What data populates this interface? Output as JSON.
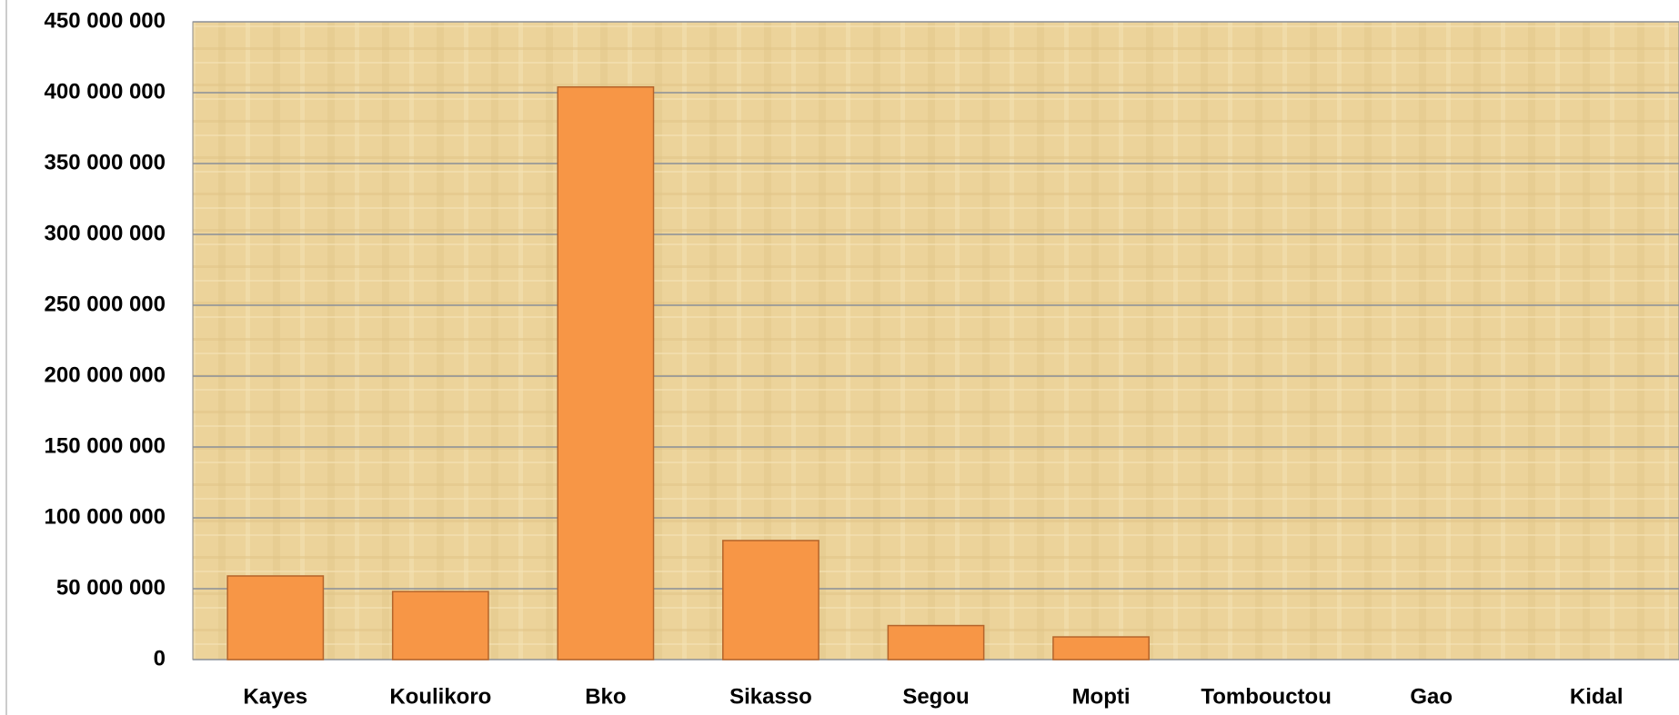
{
  "chart_data": {
    "type": "bar",
    "categories": [
      "Kayes",
      "Koulikoro",
      "Bko",
      "Sikasso",
      "Segou",
      "Mopti",
      "Tombouctou",
      "Gao",
      "Kidal"
    ],
    "values": [
      59000000,
      48000000,
      404000000,
      84000000,
      24000000,
      16000000,
      0,
      0,
      0
    ],
    "color": "#f79646",
    "ylim": [
      0,
      450000000
    ],
    "yticks": [
      0,
      {
        "value": 50000000,
        "label": "50 000 000"
      },
      {
        "value": 100000000,
        "label": "100 000 000"
      },
      {
        "value": 150000000,
        "label": "150 000 000"
      },
      {
        "value": 200000000,
        "label": "200 000 000"
      },
      {
        "value": 250000000,
        "label": "250 000 000"
      },
      {
        "value": 300000000,
        "label": "300 000 000"
      },
      {
        "value": 350000000,
        "label": "350 000 000"
      },
      {
        "value": 400000000,
        "label": "400 000 000"
      },
      {
        "value": 450000000,
        "label": "450 000 000"
      }
    ],
    "grid": true
  }
}
